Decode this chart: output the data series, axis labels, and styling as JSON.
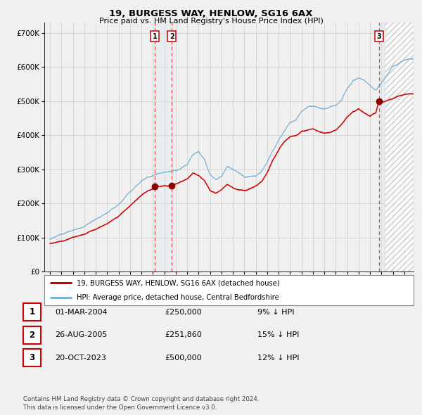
{
  "title": "19, BURGESS WAY, HENLOW, SG16 6AX",
  "subtitle": "Price paid vs. HM Land Registry's House Price Index (HPI)",
  "ytick_values": [
    0,
    100000,
    200000,
    300000,
    400000,
    500000,
    600000,
    700000
  ],
  "ylim": [
    0,
    730000
  ],
  "xlim_start": 1994.5,
  "xlim_end": 2026.8,
  "hpi_color": "#7ab3d4",
  "price_color": "#cc0000",
  "sale_marker_color": "#8b0000",
  "vline_color": "#ee4444",
  "vspan_color": "#dce8f0",
  "sale1_x": 2004.17,
  "sale1_y": 250000,
  "sale1_label": "1",
  "sale2_x": 2005.65,
  "sale2_y": 251860,
  "sale2_label": "2",
  "sale3_x": 2023.8,
  "sale3_y": 500000,
  "sale3_label": "3",
  "legend1_label": "19, BURGESS WAY, HENLOW, SG16 6AX (detached house)",
  "legend2_label": "HPI: Average price, detached house, Central Bedfordshire",
  "table_rows": [
    {
      "num": "1",
      "date": "01-MAR-2004",
      "price": "£250,000",
      "hpi": "9% ↓ HPI"
    },
    {
      "num": "2",
      "date": "26-AUG-2005",
      "price": "£251,860",
      "hpi": "15% ↓ HPI"
    },
    {
      "num": "3",
      "date": "20-OCT-2023",
      "price": "£500,000",
      "hpi": "12% ↓ HPI"
    }
  ],
  "footnote": "Contains HM Land Registry data © Crown copyright and database right 2024.\nThis data is licensed under the Open Government Licence v3.0.",
  "bg_color": "#f0f0f0",
  "plot_bg_color": "#f0f0f0",
  "grid_color": "#cccccc",
  "hpi_keypoints": [
    [
      1995.0,
      95000
    ],
    [
      1996.0,
      108000
    ],
    [
      1997.0,
      118000
    ],
    [
      1998.0,
      130000
    ],
    [
      1999.0,
      148000
    ],
    [
      2000.0,
      168000
    ],
    [
      2001.0,
      195000
    ],
    [
      2002.0,
      228000
    ],
    [
      2003.0,
      262000
    ],
    [
      2003.5,
      275000
    ],
    [
      2004.0,
      283000
    ],
    [
      2004.5,
      292000
    ],
    [
      2005.0,
      295000
    ],
    [
      2005.5,
      298000
    ],
    [
      2006.0,
      302000
    ],
    [
      2006.5,
      308000
    ],
    [
      2007.0,
      318000
    ],
    [
      2007.5,
      345000
    ],
    [
      2008.0,
      352000
    ],
    [
      2008.5,
      328000
    ],
    [
      2009.0,
      285000
    ],
    [
      2009.5,
      272000
    ],
    [
      2010.0,
      282000
    ],
    [
      2010.5,
      310000
    ],
    [
      2011.0,
      298000
    ],
    [
      2011.5,
      288000
    ],
    [
      2012.0,
      275000
    ],
    [
      2012.5,
      278000
    ],
    [
      2013.0,
      282000
    ],
    [
      2013.5,
      295000
    ],
    [
      2014.0,
      325000
    ],
    [
      2014.5,
      362000
    ],
    [
      2015.0,
      395000
    ],
    [
      2015.5,
      422000
    ],
    [
      2016.0,
      445000
    ],
    [
      2016.5,
      452000
    ],
    [
      2017.0,
      478000
    ],
    [
      2017.5,
      492000
    ],
    [
      2018.0,
      498000
    ],
    [
      2018.5,
      492000
    ],
    [
      2019.0,
      488000
    ],
    [
      2019.5,
      492000
    ],
    [
      2020.0,
      498000
    ],
    [
      2020.5,
      515000
    ],
    [
      2021.0,
      545000
    ],
    [
      2021.5,
      568000
    ],
    [
      2022.0,
      578000
    ],
    [
      2022.5,
      572000
    ],
    [
      2023.0,
      558000
    ],
    [
      2023.5,
      548000
    ],
    [
      2024.0,
      568000
    ],
    [
      2024.5,
      592000
    ],
    [
      2025.0,
      615000
    ],
    [
      2025.5,
      625000
    ],
    [
      2026.0,
      632000
    ],
    [
      2026.5,
      638000
    ]
  ],
  "price_keypoints": [
    [
      1995.0,
      83000
    ],
    [
      1996.0,
      90000
    ],
    [
      1997.0,
      100000
    ],
    [
      1998.0,
      110000
    ],
    [
      1999.0,
      122000
    ],
    [
      2000.0,
      140000
    ],
    [
      2001.0,
      162000
    ],
    [
      2002.0,
      192000
    ],
    [
      2003.0,
      225000
    ],
    [
      2003.5,
      238000
    ],
    [
      2004.0,
      246000
    ],
    [
      2004.17,
      250000
    ],
    [
      2004.5,
      252000
    ],
    [
      2005.0,
      254000
    ],
    [
      2005.65,
      251860
    ],
    [
      2006.0,
      258000
    ],
    [
      2006.5,
      265000
    ],
    [
      2007.0,
      275000
    ],
    [
      2007.5,
      290000
    ],
    [
      2008.0,
      282000
    ],
    [
      2008.5,
      268000
    ],
    [
      2009.0,
      238000
    ],
    [
      2009.5,
      232000
    ],
    [
      2010.0,
      242000
    ],
    [
      2010.5,
      258000
    ],
    [
      2011.0,
      250000
    ],
    [
      2011.5,
      242000
    ],
    [
      2012.0,
      238000
    ],
    [
      2012.5,
      245000
    ],
    [
      2013.0,
      252000
    ],
    [
      2013.5,
      265000
    ],
    [
      2014.0,
      292000
    ],
    [
      2014.5,
      328000
    ],
    [
      2015.0,
      358000
    ],
    [
      2015.5,
      382000
    ],
    [
      2016.0,
      398000
    ],
    [
      2016.5,
      402000
    ],
    [
      2017.0,
      412000
    ],
    [
      2017.5,
      415000
    ],
    [
      2018.0,
      418000
    ],
    [
      2018.5,
      412000
    ],
    [
      2019.0,
      405000
    ],
    [
      2019.5,
      408000
    ],
    [
      2020.0,
      415000
    ],
    [
      2020.5,
      428000
    ],
    [
      2021.0,
      450000
    ],
    [
      2021.5,
      465000
    ],
    [
      2022.0,
      472000
    ],
    [
      2022.5,
      460000
    ],
    [
      2023.0,
      448000
    ],
    [
      2023.5,
      458000
    ],
    [
      2023.8,
      500000
    ],
    [
      2024.0,
      492000
    ],
    [
      2024.5,
      495000
    ],
    [
      2025.0,
      502000
    ],
    [
      2025.5,
      510000
    ],
    [
      2026.0,
      515000
    ],
    [
      2026.5,
      518000
    ]
  ]
}
